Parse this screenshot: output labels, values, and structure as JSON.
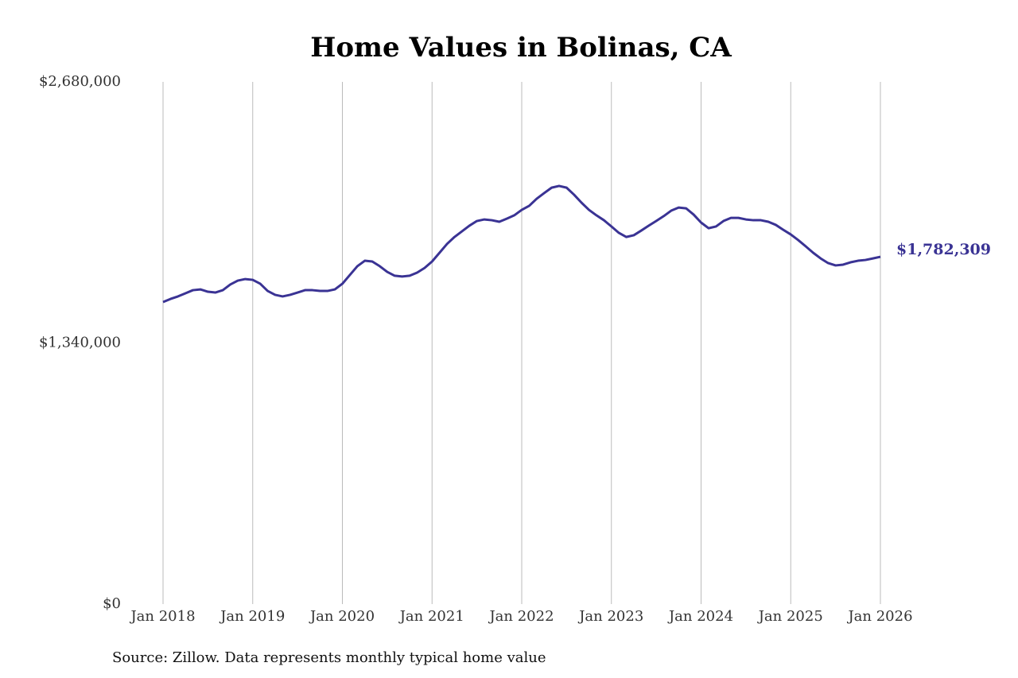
{
  "chart_data": {
    "type": "line",
    "title": "Home Values in Bolinas, CA",
    "source": "Source: Zillow. Data represents monthly typical home value",
    "x": [
      "2018-01",
      "2018-02",
      "2018-03",
      "2018-04",
      "2018-05",
      "2018-06",
      "2018-07",
      "2018-08",
      "2018-09",
      "2018-10",
      "2018-11",
      "2018-12",
      "2019-01",
      "2019-02",
      "2019-03",
      "2019-04",
      "2019-05",
      "2019-06",
      "2019-07",
      "2019-08",
      "2019-09",
      "2019-10",
      "2019-11",
      "2019-12",
      "2020-01",
      "2020-02",
      "2020-03",
      "2020-04",
      "2020-05",
      "2020-06",
      "2020-07",
      "2020-08",
      "2020-09",
      "2020-10",
      "2020-11",
      "2020-12",
      "2021-01",
      "2021-02",
      "2021-03",
      "2021-04",
      "2021-05",
      "2021-06",
      "2021-07",
      "2021-08",
      "2021-09",
      "2021-10",
      "2021-11",
      "2021-12",
      "2022-01",
      "2022-02",
      "2022-03",
      "2022-04",
      "2022-05",
      "2022-06",
      "2022-07",
      "2022-08",
      "2022-09",
      "2022-10",
      "2022-11",
      "2022-12",
      "2023-01",
      "2023-02",
      "2023-03",
      "2023-04",
      "2023-05",
      "2023-06",
      "2023-07",
      "2023-08",
      "2023-09",
      "2023-10",
      "2023-11",
      "2023-12",
      "2024-01",
      "2024-02",
      "2024-03",
      "2024-04",
      "2024-05",
      "2024-06",
      "2024-07",
      "2024-08",
      "2024-09",
      "2024-10",
      "2024-11",
      "2024-12",
      "2025-01",
      "2025-02",
      "2025-03",
      "2025-04",
      "2025-05",
      "2025-06",
      "2025-07",
      "2025-08",
      "2025-09",
      "2025-10",
      "2025-11",
      "2025-12",
      "2026-01"
    ],
    "series": [
      {
        "color": "#3a3394",
        "values": [
          1550000,
          1566000,
          1579000,
          1595000,
          1611000,
          1615000,
          1603000,
          1599000,
          1611000,
          1640000,
          1660000,
          1668000,
          1664000,
          1644000,
          1607000,
          1587000,
          1579000,
          1587000,
          1599000,
          1611000,
          1611000,
          1607000,
          1607000,
          1615000,
          1644000,
          1689000,
          1734000,
          1762000,
          1758000,
          1734000,
          1705000,
          1685000,
          1681000,
          1685000,
          1701000,
          1725000,
          1758000,
          1803000,
          1848000,
          1884000,
          1913000,
          1942000,
          1966000,
          1974000,
          1970000,
          1962000,
          1978000,
          1995000,
          2023000,
          2044000,
          2080000,
          2109000,
          2137000,
          2146000,
          2137000,
          2101000,
          2060000,
          2023000,
          1995000,
          1970000,
          1938000,
          1905000,
          1884000,
          1893000,
          1917000,
          1942000,
          1966000,
          1991000,
          2019000,
          2035000,
          2031000,
          1999000,
          1958000,
          1929000,
          1938000,
          1966000,
          1982000,
          1982000,
          1974000,
          1970000,
          1970000,
          1962000,
          1946000,
          1921000,
          1897000,
          1868000,
          1836000,
          1803000,
          1774000,
          1750000,
          1738000,
          1742000,
          1754000,
          1762000,
          1766000,
          1774000,
          1782309
        ],
        "value_labels": [
          null,
          null,
          null,
          null,
          null,
          null,
          null,
          null,
          null,
          null,
          null,
          null,
          null,
          null,
          null,
          null,
          null,
          null,
          null,
          null,
          null,
          null,
          null,
          null,
          null,
          null,
          null,
          null,
          null,
          null,
          null,
          null,
          null,
          null,
          null,
          null,
          null,
          null,
          null,
          null,
          null,
          null,
          null,
          null,
          null,
          null,
          null,
          null,
          null,
          null,
          null,
          null,
          null,
          null,
          null,
          null,
          null,
          null,
          null,
          null,
          null,
          null,
          null,
          null,
          null,
          null,
          null,
          null,
          null,
          null,
          null,
          null,
          null,
          null,
          null,
          null,
          null,
          null,
          null,
          null,
          null,
          null,
          null,
          null,
          null,
          null,
          null,
          null,
          null,
          null,
          null,
          null,
          null,
          null,
          null,
          null,
          "$1,782,309"
        ]
      }
    ],
    "xlim": [
      "2018-01",
      "2026-01"
    ],
    "xticks": [
      {
        "value": "2018-01",
        "label": "Jan 2018"
      },
      {
        "value": "2019-01",
        "label": "Jan 2019"
      },
      {
        "value": "2020-01",
        "label": "Jan 2020"
      },
      {
        "value": "2021-01",
        "label": "Jan 2021"
      },
      {
        "value": "2022-01",
        "label": "Jan 2022"
      },
      {
        "value": "2023-01",
        "label": "Jan 2023"
      },
      {
        "value": "2024-01",
        "label": "Jan 2024"
      },
      {
        "value": "2025-01",
        "label": "Jan 2025"
      },
      {
        "value": "2026-01",
        "label": "Jan 2026"
      }
    ],
    "ylim": [
      0,
      2680000
    ],
    "yticks": [
      {
        "value": 0,
        "label": "$0"
      },
      {
        "value": 1340000,
        "label": "$1,340,000"
      },
      {
        "value": 2680000,
        "label": "$2,680,000"
      }
    ],
    "grid": "x"
  }
}
